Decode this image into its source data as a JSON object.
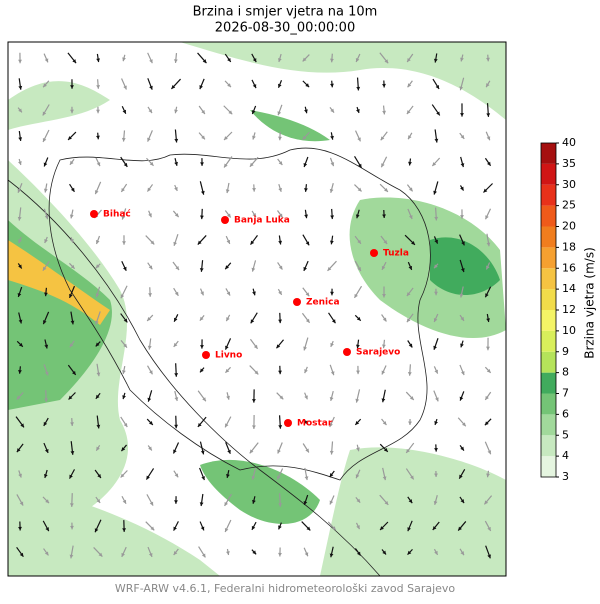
{
  "header": {
    "title": "Brzina i smjer vjetra na 10m",
    "subtitle": "2026-08-30_00:00:00"
  },
  "cities": [
    {
      "name": "Bihać"
    },
    {
      "name": "Banja Luka"
    },
    {
      "name": "Tuzla"
    },
    {
      "name": "Zenica"
    },
    {
      "name": "Livno"
    },
    {
      "name": "Sarajevo"
    },
    {
      "name": "Mostar"
    }
  ],
  "colorbar": {
    "label": "Brzina vjetra (m/s)",
    "ticks": [
      3,
      4,
      5,
      6,
      7,
      8,
      9,
      10,
      12,
      14,
      16,
      18,
      20,
      25,
      30,
      35,
      40
    ],
    "colors": [
      "#e5f5e0",
      "#c7e9c0",
      "#a1d99b",
      "#74c476",
      "#41ab5d",
      "#b5e35a",
      "#d9ef5b",
      "#f4f466",
      "#f2dc4a",
      "#f5c342",
      "#f5a030",
      "#f07d1e",
      "#ef5a1a",
      "#e8311a",
      "#d01515",
      "#a50f0f"
    ]
  },
  "footer": "WRF-ARW v4.6.1, Federalni hidrometeorološki zavod Sarajevo"
}
